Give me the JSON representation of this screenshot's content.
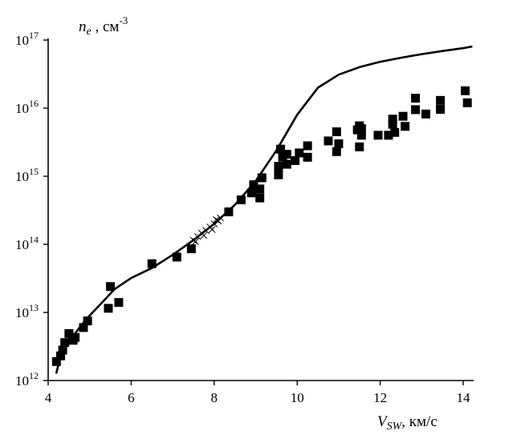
{
  "chart_data": {
    "type": "scatter",
    "x_axis": {
      "label_main": "V",
      "label_sub": "SW",
      "label_unit": ", км/с",
      "ticks": [
        4,
        6,
        8,
        10,
        12,
        14
      ],
      "range": [
        4,
        14
      ]
    },
    "y_axis": {
      "scale": "log",
      "label_main": "n",
      "label_sub": "e",
      "label_unit": " , см",
      "label_exp": "-3",
      "tick_base": "10",
      "tick_exponents": [
        "12",
        "13",
        "14",
        "15",
        "16",
        "17"
      ],
      "range": [
        1000000000000.0,
        1e+17
      ]
    },
    "grid": false,
    "series": [
      {
        "kind": "line",
        "x": [
          4.2,
          4.3,
          4.45,
          4.6,
          4.8,
          5.0,
          5.3,
          5.6,
          6.0,
          6.5,
          7.0,
          7.5,
          8.0,
          8.5,
          9.0,
          9.5,
          10.0,
          10.5,
          11.0,
          11.5,
          12.0,
          12.5,
          13.0,
          13.5,
          14.0,
          14.2
        ],
        "y": [
          1300000000000.0,
          2300000000000.0,
          3400000000000.0,
          4500000000000.0,
          6500000000000.0,
          9000000000000.0,
          14000000000000.0,
          22000000000000.0,
          32000000000000.0,
          45000000000000.0,
          70000000000000.0,
          115000000000000.0,
          200000000000000.0,
          380000000000000.0,
          850000000000000.0,
          2400000000000000.0,
          8000000000000000.0,
          2e+16,
          3.1e+16,
          4e+16,
          4.8e+16,
          5.5e+16,
          6.2e+16,
          6.9e+16,
          7.6e+16,
          8e+16
        ]
      },
      {
        "kind": "points",
        "marker": "square",
        "x": [
          4.2,
          4.3,
          4.35,
          4.4,
          4.5,
          4.6,
          4.65,
          4.85,
          4.95,
          5.45,
          5.5,
          5.7,
          6.5,
          7.1,
          7.45,
          8.35,
          8.65,
          8.95,
          8.9,
          9.1,
          9.15,
          9.1,
          9.55,
          9.6,
          9.55,
          9.65,
          9.75,
          9.75,
          9.95,
          10.05,
          10.25,
          10.25,
          10.75,
          10.95,
          11.0,
          10.95,
          11.45,
          11.5,
          11.55,
          11.55,
          11.5,
          11.95,
          12.2,
          12.3,
          12.35,
          12.3,
          12.55,
          12.6,
          12.85,
          12.85,
          13.1,
          13.45,
          13.45,
          14.05,
          14.1
        ],
        "y": [
          1900000000000.0,
          2300000000000.0,
          2800000000000.0,
          3600000000000.0,
          4900000000000.0,
          3900000000000.0,
          4300000000000.0,
          6000000000000.0,
          7500000000000.0,
          11500000000000.0,
          24000000000000.0,
          14000000000000.0,
          52000000000000.0,
          65000000000000.0,
          86000000000000.0,
          300000000000000.0,
          450000000000000.0,
          750000000000000.0,
          570000000000000.0,
          650000000000000.0,
          950000000000000.0,
          480000000000000.0,
          1400000000000000.0,
          2500000000000000.0,
          1050000000000000.0,
          1900000000000000.0,
          1500000000000000.0,
          2100000000000000.0,
          1700000000000000.0,
          2200000000000000.0,
          2800000000000000.0,
          1900000000000000.0,
          3300000000000000.0,
          4500000000000000.0,
          3000000000000000.0,
          2300000000000000.0,
          4800000000000000.0,
          5500000000000000.0,
          5000000000000000.0,
          4000000000000000.0,
          2700000000000000.0,
          4000000000000000.0,
          4000000000000000.0,
          5800000000000000.0,
          4400000000000000.0,
          6900000000000000.0,
          7600000000000000.0,
          5400000000000000.0,
          9500000000000000.0,
          1.4e+16,
          8200000000000000.0,
          9600000000000000.0,
          1.3e+16,
          1.8e+16,
          1.2e+16
        ]
      },
      {
        "kind": "points",
        "marker": "cross",
        "x": [
          7.5,
          7.6,
          7.7,
          7.8,
          7.9,
          8.0,
          8.1,
          7.55,
          7.75,
          7.95,
          8.05,
          8.15
        ],
        "y": [
          115000000000000.0,
          130000000000000.0,
          145000000000000.0,
          160000000000000.0,
          180000000000000.0,
          200000000000000.0,
          220000000000000.0,
          110000000000000.0,
          135000000000000.0,
          165000000000000.0,
          230000000000000.0,
          245000000000000.0
        ]
      }
    ]
  }
}
